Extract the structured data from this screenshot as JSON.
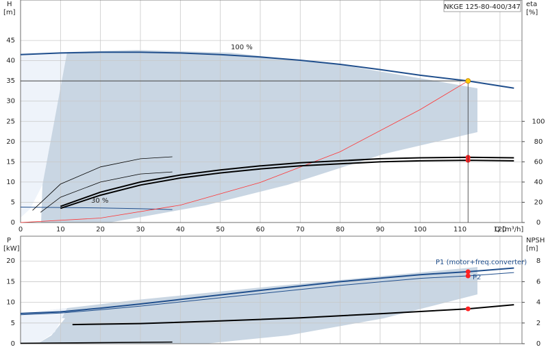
{
  "chart_data": [
    {
      "type": "line",
      "title": "NKGE 125-80-400/347",
      "ylabel": "H",
      "yunit": "[m]",
      "y2label": "eta",
      "y2unit": "[%]",
      "xlabel": "Q [m³/h]",
      "xlim": [
        0,
        125.5
      ],
      "xticks": [
        0,
        10,
        20,
        30,
        40,
        50,
        60,
        70,
        80,
        90,
        100,
        110,
        120
      ],
      "ylim": [
        0,
        55
      ],
      "yticks": [
        0,
        5,
        10,
        15,
        20,
        25,
        30,
        35,
        40,
        45
      ],
      "y2lim": [
        0,
        220
      ],
      "y2ticks": [
        0,
        20,
        40,
        60,
        80,
        100
      ],
      "grid": true,
      "annotations": [
        "100 %",
        "30 %"
      ],
      "series": [
        {
          "color": "#1f4e8c",
          "width": 2,
          "x": [
            0,
            10,
            20,
            30,
            40,
            50,
            60,
            70,
            80,
            90,
            100,
            112,
            123.5
          ],
          "values": [
            41.5,
            41.9,
            42.1,
            42.1,
            41.9,
            41.5,
            40.9,
            40.1,
            39.1,
            37.8,
            36.4,
            35,
            33.2
          ]
        },
        {
          "color": "#1f4e8c",
          "width": 1,
          "x": [
            0,
            10,
            20,
            30,
            38
          ],
          "values": [
            3.8,
            3.7,
            3.6,
            3.4,
            3.2
          ]
        },
        {
          "color": "#ff3333",
          "width": 0.8,
          "x": [
            0,
            20,
            40,
            60,
            80,
            100,
            112
          ],
          "values": [
            0,
            1.1,
            4.3,
            9.9,
            17.5,
            27.9,
            35
          ]
        },
        {
          "color": "#000000",
          "width": 2,
          "axis": "y2",
          "x": [
            10,
            20,
            30,
            40,
            50,
            60,
            70,
            80,
            90,
            100,
            112,
            123.5
          ],
          "values": [
            16,
            30,
            40,
            47,
            52,
            56,
            59,
            61,
            63,
            64,
            64.5,
            64
          ]
        },
        {
          "color": "#000000",
          "width": 2,
          "axis": "y2",
          "x": [
            10,
            20,
            30,
            40,
            50,
            60,
            70,
            80,
            90,
            100,
            112,
            123.5
          ],
          "values": [
            14,
            27,
            37,
            44,
            49,
            53,
            56,
            58,
            60,
            61,
            61.5,
            61
          ]
        },
        {
          "color": "#000000",
          "width": 0.8,
          "axis": "y2",
          "x": [
            3,
            10,
            20,
            30,
            38
          ],
          "values": [
            12,
            38,
            55,
            63,
            65
          ]
        },
        {
          "color": "#000000",
          "width": 0.8,
          "axis": "y2",
          "x": [
            5,
            10,
            20,
            30,
            38
          ],
          "values": [
            10,
            25,
            40,
            48,
            50
          ]
        },
        {
          "color": "#ff2222",
          "marker": true,
          "axis": "y2",
          "x": [
            112,
            112
          ],
          "values": [
            64.5,
            61.5
          ]
        },
        {
          "color": "#ffcc00",
          "marker": true,
          "duty": true,
          "x": [
            112
          ],
          "values": [
            35
          ]
        }
      ]
    },
    {
      "type": "line",
      "ylabel": "P",
      "yunit": "[kW]",
      "y2label": "NPSH",
      "y2unit": "[m]",
      "xlim": [
        0,
        125.5
      ],
      "xticks": [
        0,
        10,
        20,
        30,
        40,
        50,
        60,
        70,
        80,
        90,
        100,
        110,
        120
      ],
      "ylim": [
        0,
        26
      ],
      "yticks": [
        0,
        5,
        10,
        15,
        20
      ],
      "y2lim": [
        0,
        10.4
      ],
      "y2ticks": [
        0,
        2,
        4,
        6,
        8
      ],
      "grid": true,
      "annotations": [
        "P1 (motor+freq.converter)",
        "P2"
      ],
      "series": [
        {
          "color": "#1f4e8c",
          "width": 2,
          "x": [
            0,
            10,
            20,
            30,
            40,
            60,
            80,
            100,
            112,
            123.5
          ],
          "values": [
            7.3,
            7.7,
            8.6,
            9.6,
            10.7,
            12.9,
            15.0,
            16.7,
            17.4,
            18.3
          ]
        },
        {
          "color": "#1f4e8c",
          "width": 1,
          "x": [
            0,
            10,
            20,
            30,
            40,
            60,
            80,
            100,
            112,
            123.5
          ],
          "values": [
            7.0,
            7.4,
            8.2,
            9.1,
            10.1,
            12.1,
            14.1,
            15.8,
            16.4,
            17.2
          ]
        },
        {
          "color": "#000000",
          "width": 2,
          "axis": "y2",
          "x": [
            13,
            30,
            50,
            70,
            90,
            112,
            123.5
          ],
          "values": [
            1.85,
            1.95,
            2.2,
            2.5,
            2.9,
            3.37,
            3.77
          ]
        },
        {
          "color": "#000000",
          "width": 1.5,
          "x": [
            0,
            38
          ],
          "values": [
            0.1,
            0.4
          ]
        },
        {
          "color": "#ff2222",
          "marker": true,
          "x": [
            112,
            112
          ],
          "values": [
            17.4,
            16.4
          ]
        },
        {
          "color": "#ff2222",
          "marker": true,
          "axis": "y2",
          "x": [
            112
          ],
          "values": [
            3.37
          ]
        }
      ]
    }
  ]
}
